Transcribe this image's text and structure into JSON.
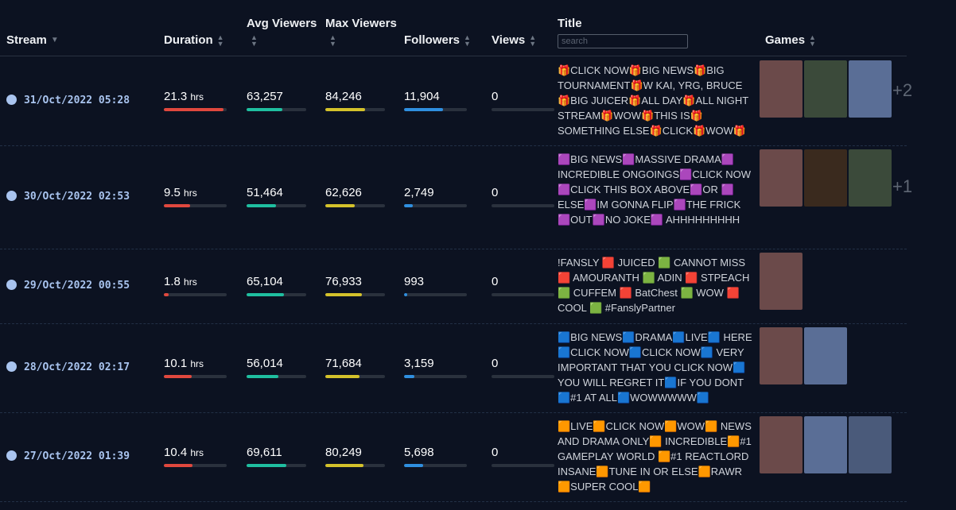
{
  "header": {
    "stream": "Stream",
    "duration": "Duration",
    "avg_viewers": "Avg Viewers",
    "max_viewers": "Max Viewers",
    "followers": "Followers",
    "views": "Views",
    "title": "Title",
    "search_placeholder": "search",
    "games": "Games"
  },
  "duration_unit": "hrs",
  "rows": [
    {
      "date": "31/Oct/2022 05:28",
      "duration": "21.3",
      "avg_viewers": "63,257",
      "max_viewers": "84,246",
      "followers": "11,904",
      "views": "0",
      "title": "🎁CLICK NOW🎁BIG NEWS🎁BIG TOURNAMENT🎁W KAI, YRG, BRUCE 🎁BIG JUICER🎁ALL DAY🎁ALL NIGHT STREAM🎁WOW🎁THIS IS🎁 SOMETHING ELSE🎁CLICK🎁WOW🎁",
      "games": 3,
      "more": "+2"
    },
    {
      "date": "30/Oct/2022 02:53",
      "duration": "9.5",
      "avg_viewers": "51,464",
      "max_viewers": "62,626",
      "followers": "2,749",
      "views": "0",
      "title": "🟪BIG NEWS🟪MASSIVE DRAMA🟪 INCREDIBLE ONGOINGS🟪CLICK NOW🟪CLICK THIS BOX ABOVE🟪OR 🟪ELSE🟪IM GONNA FLIP🟪THE FRICK🟪OUT🟪NO JOKE🟪 AHHHHHHHHH",
      "games": 3,
      "more": "+1"
    },
    {
      "date": "29/Oct/2022 00:55",
      "duration": "1.8",
      "avg_viewers": "65,104",
      "max_viewers": "76,933",
      "followers": "993",
      "views": "0",
      "title": "!FANSLY 🟥 JUICED 🟩 CANNOT MISS 🟥 AMOURANTH 🟩 ADIN 🟥 STPEACH 🟩 CUFFEM 🟥 BatChest 🟩 WOW 🟥 COOL 🟩 #FanslyPartner",
      "games": 1
    },
    {
      "date": "28/Oct/2022 02:17",
      "duration": "10.1",
      "avg_viewers": "56,014",
      "max_viewers": "71,684",
      "followers": "3,159",
      "views": "0",
      "title": "🟦BIG NEWS🟦DRAMA🟦LIVE🟦 HERE🟦CLICK NOW🟦CLICK NOW🟦 VERY IMPORTANT THAT YOU CLICK NOW🟦YOU WILL REGRET IT🟦IF YOU DONT🟦#1 AT ALL🟦WOWWWWW🟦",
      "games": 2
    },
    {
      "date": "27/Oct/2022 01:39",
      "duration": "10.4",
      "avg_viewers": "69,611",
      "max_viewers": "80,249",
      "followers": "5,698",
      "views": "0",
      "title": "🟧LIVE🟧CLICK NOW🟧WOW🟧 NEWS AND DRAMA ONLY🟧 INCREDIBLE🟧#1 GAMEPLAY WORLD 🟧#1 REACTLORD INSANE🟧TUNE IN OR ELSE🟧RAWR🟧SUPER COOL🟧",
      "games": 3
    }
  ]
}
